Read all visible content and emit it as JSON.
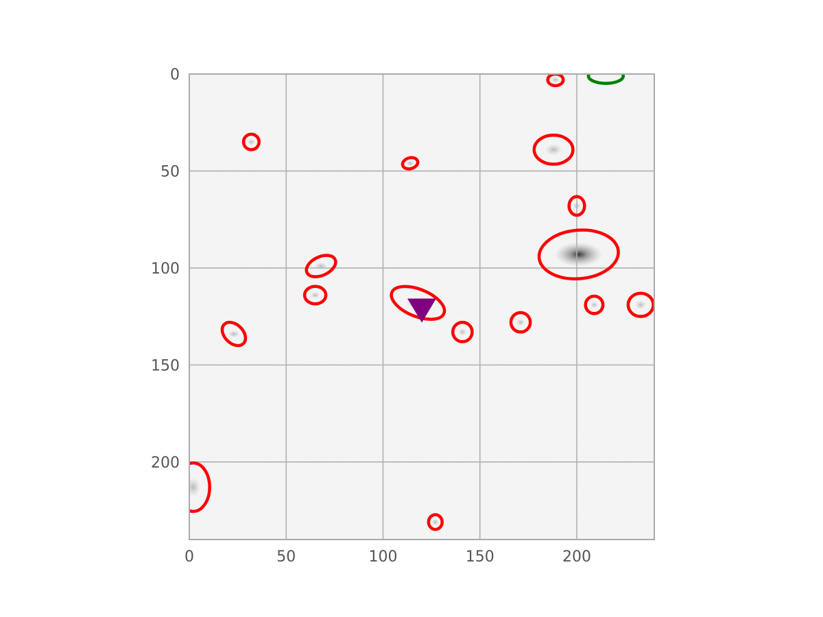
{
  "chart_data": {
    "type": "scatter",
    "title": "",
    "xlabel": "",
    "ylabel": "",
    "xlim": [
      0,
      240
    ],
    "ylim": [
      240,
      0
    ],
    "y_inverted": true,
    "grid": true,
    "image_background": "grayscale astronomical cutout (sky noise with faint sources)",
    "x_ticks": [
      0,
      50,
      100,
      150,
      200
    ],
    "y_ticks": [
      0,
      50,
      100,
      150,
      200
    ],
    "x_tick_labels": [
      "0",
      "50",
      "100",
      "150",
      "200"
    ],
    "y_tick_labels": [
      "0",
      "50",
      "100",
      "150",
      "200"
    ],
    "series": [
      {
        "marker": "ellipse",
        "color": "#ff0000",
        "points": [
          {
            "x": 189,
            "y": 3,
            "rx": 4,
            "ry": 3,
            "angle": 0
          },
          {
            "x": 32,
            "y": 35,
            "rx": 4,
            "ry": 4,
            "angle": 0
          },
          {
            "x": 114,
            "y": 46,
            "rx": 4,
            "ry": 2.8,
            "angle": -15
          },
          {
            "x": 188,
            "y": 39,
            "rx": 10,
            "ry": 7.5,
            "angle": 0
          },
          {
            "x": 200,
            "y": 68,
            "rx": 4,
            "ry": 4.8,
            "angle": 0
          },
          {
            "x": 201,
            "y": 93,
            "rx": 20.5,
            "ry": 12.5,
            "angle": -5
          },
          {
            "x": 68,
            "y": 99,
            "rx": 8,
            "ry": 4.8,
            "angle": -25
          },
          {
            "x": 65,
            "y": 114,
            "rx": 5.5,
            "ry": 4.5,
            "angle": 0
          },
          {
            "x": 118,
            "y": 118,
            "rx": 14.5,
            "ry": 7,
            "angle": 22
          },
          {
            "x": 23,
            "y": 134,
            "rx": 7,
            "ry": 4.8,
            "angle": 45
          },
          {
            "x": 141,
            "y": 133,
            "rx": 5,
            "ry": 5,
            "angle": 0
          },
          {
            "x": 171,
            "y": 128,
            "rx": 5,
            "ry": 5,
            "angle": 0
          },
          {
            "x": 209,
            "y": 119,
            "rx": 4.5,
            "ry": 4.5,
            "angle": 0
          },
          {
            "x": 233,
            "y": 119,
            "rx": 6.5,
            "ry": 6,
            "angle": 0
          },
          {
            "x": 2,
            "y": 213,
            "rx": 8.5,
            "ry": 12.5,
            "angle": 0
          },
          {
            "x": 127,
            "y": 231,
            "rx": 3.5,
            "ry": 3.8,
            "angle": 0
          }
        ]
      },
      {
        "marker": "ellipse",
        "color": "#008000",
        "points": [
          {
            "x": 215,
            "y": 1,
            "rx": 9,
            "ry": 3.8,
            "angle": 0
          }
        ]
      },
      {
        "marker": "triangle-down",
        "color": "#800080",
        "points": [
          {
            "x": 120,
            "y": 120
          }
        ]
      }
    ]
  }
}
